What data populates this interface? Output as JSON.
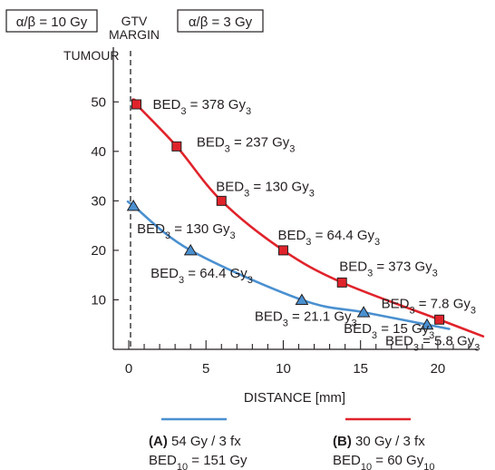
{
  "chart_data": {
    "type": "line",
    "xlabel": "DISTANCE [mm]",
    "xlim": [
      0,
      22
    ],
    "ylim": [
      0,
      55
    ],
    "x_ticks": [
      0,
      5,
      10,
      15,
      20
    ],
    "y_ticks": [
      10,
      20,
      30,
      40,
      50
    ],
    "grid": false,
    "legend_position": "bottom",
    "annotations": {
      "left_box": "α/β = 10 Gy",
      "right_box": "α/β = 3 Gy",
      "gtv_margin": "GTV MARGIN",
      "tumour": "TUMOUR"
    },
    "series": [
      {
        "name": "(A) 54 Gy / 3 fx",
        "legend_detail": "BED10 = 151 Gy",
        "color": "#4a90d0",
        "marker": "triangle",
        "x": [
          0.3,
          4.0,
          11.2,
          15.2,
          19.3
        ],
        "y": [
          29,
          20,
          10,
          7.5,
          5
        ],
        "labels": [
          "BED3 = 130 Gy3",
          "BED3 = 64.4 Gy3",
          "BED3 = 21.1 Gy3",
          "BED3 = 15 Gy3",
          "BED3 = 5.8 Gy3"
        ]
      },
      {
        "name": "(B) 30 Gy / 3 fx",
        "legend_detail": "BED10 = 60 Gy10",
        "color": "#e0232b",
        "marker": "square",
        "x": [
          0.5,
          3.1,
          6.0,
          10.0,
          13.8,
          20.1
        ],
        "y": [
          49.5,
          41,
          30,
          20,
          13.5,
          6
        ],
        "labels": [
          "BED3 = 378 Gy3",
          "BED3 = 237 Gy3",
          "BED3 = 130 Gy3",
          "BED3 = 64.4 Gy3",
          "BED3 = 373 Gy3",
          "BED3 = 7.8 Gy3"
        ]
      }
    ]
  }
}
